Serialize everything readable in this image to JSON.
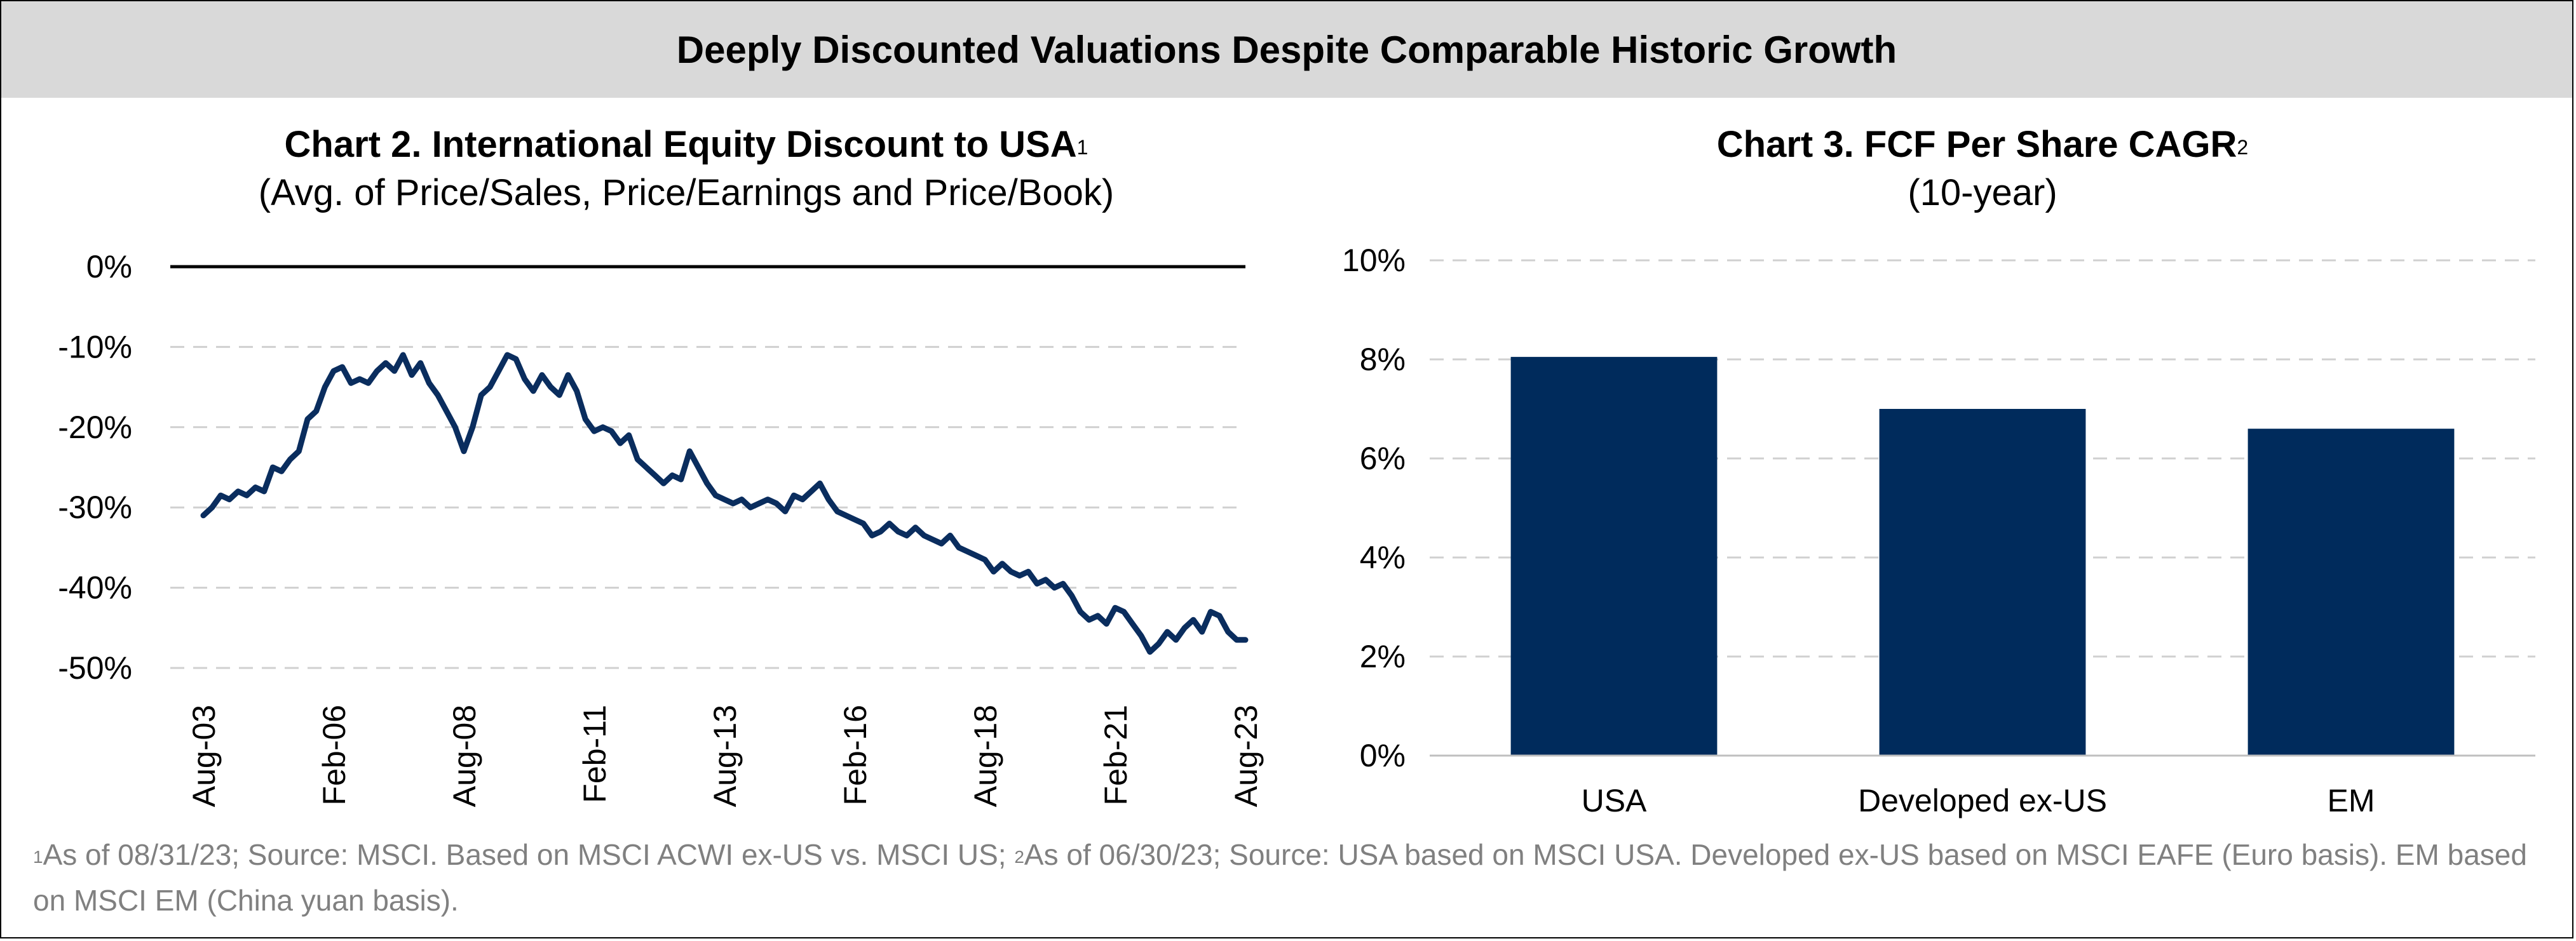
{
  "banner": {
    "title": "Deeply Discounted Valuations Despite Comparable Historic Growth"
  },
  "chart2": {
    "title": "Chart 2. International Equity Discount to USA",
    "title_sup": "1",
    "subtitle": "(Avg. of Price/Sales, Price/Earnings and Price/Book)"
  },
  "chart3": {
    "title": "Chart 3. FCF Per Share CAGR",
    "title_sup": "2",
    "subtitle": "(10-year)"
  },
  "footnote": {
    "sup1": "1",
    "part1": "As of 08/31/23; Source: MSCI.  Based on MSCI ACWI ex-US vs. MSCI US; ",
    "sup2": "2",
    "part2": "As of 06/30/23; Source: USA based on MSCI USA. Developed ex-US based on MSCI EAFE (Euro basis).  EM based on MSCI EM (China yuan basis)."
  },
  "chart_data": [
    {
      "type": "line",
      "title": "Chart 2. International Equity Discount to USA",
      "subtitle": "(Avg. of Price/Sales, Price/Earnings and Price/Book)",
      "x_ticks": [
        "Aug-03",
        "Feb-06",
        "Aug-08",
        "Feb-11",
        "Aug-13",
        "Feb-16",
        "Aug-18",
        "Feb-21",
        "Aug-23"
      ],
      "y_ticks": [
        "0%",
        "-10%",
        "-20%",
        "-30%",
        "-40%",
        "-50%"
      ],
      "ylim": [
        -50,
        0
      ],
      "grid": "horizontal-dashed",
      "line_color": "#0a2d5e",
      "points": [
        [
          "2003-08",
          -31
        ],
        [
          "2003-10",
          -30
        ],
        [
          "2003-12",
          -28.5
        ],
        [
          "2004-02",
          -29
        ],
        [
          "2004-04",
          -28
        ],
        [
          "2004-06",
          -28.5
        ],
        [
          "2004-08",
          -27.5
        ],
        [
          "2004-10",
          -28
        ],
        [
          "2004-12",
          -25
        ],
        [
          "2005-02",
          -25.5
        ],
        [
          "2005-04",
          -24
        ],
        [
          "2005-06",
          -23
        ],
        [
          "2005-08",
          -19
        ],
        [
          "2005-10",
          -18
        ],
        [
          "2005-12",
          -15
        ],
        [
          "2006-02",
          -13
        ],
        [
          "2006-04",
          -12.5
        ],
        [
          "2006-06",
          -14.5
        ],
        [
          "2006-08",
          -14
        ],
        [
          "2006-10",
          -14.5
        ],
        [
          "2006-12",
          -13
        ],
        [
          "2007-02",
          -12
        ],
        [
          "2007-04",
          -13
        ],
        [
          "2007-06",
          -11
        ],
        [
          "2007-08",
          -13.5
        ],
        [
          "2007-10",
          -12
        ],
        [
          "2007-12",
          -14.5
        ],
        [
          "2008-02",
          -16
        ],
        [
          "2008-04",
          -18
        ],
        [
          "2008-06",
          -20
        ],
        [
          "2008-08",
          -23
        ],
        [
          "2008-10",
          -20
        ],
        [
          "2008-12",
          -16
        ],
        [
          "2009-02",
          -15
        ],
        [
          "2009-04",
          -13
        ],
        [
          "2009-06",
          -11
        ],
        [
          "2009-08",
          -11.5
        ],
        [
          "2009-10",
          -14
        ],
        [
          "2009-12",
          -15.5
        ],
        [
          "2010-02",
          -13.5
        ],
        [
          "2010-04",
          -15
        ],
        [
          "2010-06",
          -16
        ],
        [
          "2010-08",
          -13.5
        ],
        [
          "2010-10",
          -15.5
        ],
        [
          "2010-12",
          -19
        ],
        [
          "2011-02",
          -20.5
        ],
        [
          "2011-04",
          -20
        ],
        [
          "2011-06",
          -20.5
        ],
        [
          "2011-08",
          -22
        ],
        [
          "2011-10",
          -21
        ],
        [
          "2011-12",
          -24
        ],
        [
          "2012-02",
          -25
        ],
        [
          "2012-04",
          -26
        ],
        [
          "2012-06",
          -27
        ],
        [
          "2012-08",
          -26
        ],
        [
          "2012-10",
          -26.5
        ],
        [
          "2012-12",
          -23
        ],
        [
          "2013-02",
          -25
        ],
        [
          "2013-04",
          -27
        ],
        [
          "2013-06",
          -28.5
        ],
        [
          "2013-08",
          -29
        ],
        [
          "2013-10",
          -29.5
        ],
        [
          "2013-12",
          -29
        ],
        [
          "2014-02",
          -30
        ],
        [
          "2014-04",
          -29.5
        ],
        [
          "2014-06",
          -29
        ],
        [
          "2014-08",
          -29.5
        ],
        [
          "2014-10",
          -30.5
        ],
        [
          "2014-12",
          -28.5
        ],
        [
          "2015-02",
          -29
        ],
        [
          "2015-04",
          -28
        ],
        [
          "2015-06",
          -27
        ],
        [
          "2015-08",
          -29
        ],
        [
          "2015-10",
          -30.5
        ],
        [
          "2015-12",
          -31
        ],
        [
          "2016-02",
          -31.5
        ],
        [
          "2016-04",
          -32
        ],
        [
          "2016-06",
          -33.5
        ],
        [
          "2016-08",
          -33
        ],
        [
          "2016-10",
          -32
        ],
        [
          "2016-12",
          -33
        ],
        [
          "2017-02",
          -33.5
        ],
        [
          "2017-04",
          -32.5
        ],
        [
          "2017-06",
          -33.5
        ],
        [
          "2017-08",
          -34
        ],
        [
          "2017-10",
          -34.5
        ],
        [
          "2017-12",
          -33.5
        ],
        [
          "2018-02",
          -35
        ],
        [
          "2018-04",
          -35.5
        ],
        [
          "2018-06",
          -36
        ],
        [
          "2018-08",
          -36.5
        ],
        [
          "2018-10",
          -38
        ],
        [
          "2018-12",
          -37
        ],
        [
          "2019-02",
          -38
        ],
        [
          "2019-04",
          -38.5
        ],
        [
          "2019-06",
          -38
        ],
        [
          "2019-08",
          -39.5
        ],
        [
          "2019-10",
          -39
        ],
        [
          "2019-12",
          -40
        ],
        [
          "2020-02",
          -39.5
        ],
        [
          "2020-04",
          -41
        ],
        [
          "2020-06",
          -43
        ],
        [
          "2020-08",
          -44
        ],
        [
          "2020-10",
          -43.5
        ],
        [
          "2020-12",
          -44.5
        ],
        [
          "2021-02",
          -42.5
        ],
        [
          "2021-04",
          -43
        ],
        [
          "2021-06",
          -44.5
        ],
        [
          "2021-08",
          -46
        ],
        [
          "2021-10",
          -48
        ],
        [
          "2021-12",
          -47
        ],
        [
          "2022-02",
          -45.5
        ],
        [
          "2022-04",
          -46.5
        ],
        [
          "2022-06",
          -45
        ],
        [
          "2022-08",
          -44
        ],
        [
          "2022-10",
          -45.5
        ],
        [
          "2022-12",
          -43
        ],
        [
          "2023-02",
          -43.5
        ],
        [
          "2023-04",
          -45.5
        ],
        [
          "2023-06",
          -46.5
        ],
        [
          "2023-08",
          -46.5
        ]
      ]
    },
    {
      "type": "bar",
      "title": "Chart 3. FCF Per Share CAGR",
      "subtitle": "(10-year)",
      "categories": [
        "USA",
        "Developed ex-US",
        "EM"
      ],
      "values": [
        8.05,
        7.0,
        6.6
      ],
      "y_ticks": [
        "0%",
        "2%",
        "4%",
        "6%",
        "8%",
        "10%"
      ],
      "ylim": [
        0,
        10
      ],
      "grid": "horizontal-dashed",
      "bar_color": "#002b5c"
    }
  ]
}
